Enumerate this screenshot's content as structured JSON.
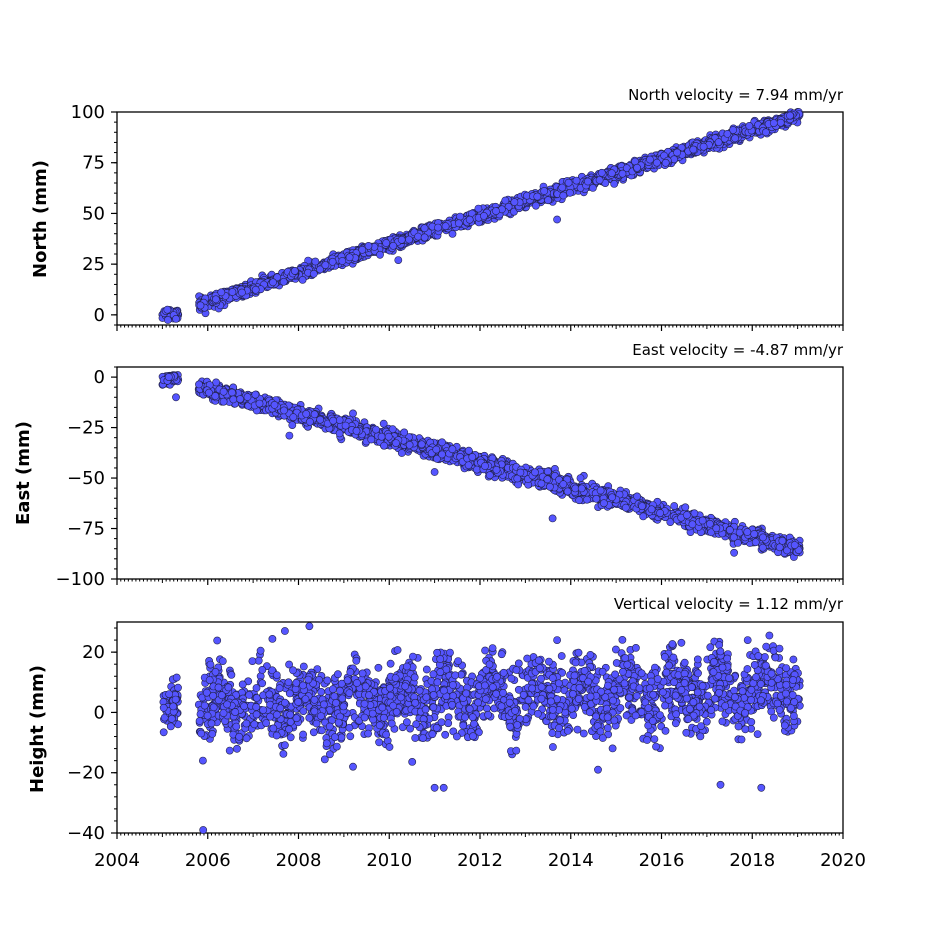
{
  "chart_data": [
    {
      "type": "scatter",
      "title": "North velocity = 7.94 mm/yr",
      "ylabel": "North (mm)",
      "ylim": [
        -5,
        100
      ],
      "xlim": [
        2004,
        2020
      ],
      "yticks": [
        0,
        25,
        50,
        75,
        100
      ],
      "ytick_labels": [
        "0",
        "25",
        "50",
        "75",
        "100"
      ],
      "series": [
        {
          "color": "#5555ff",
          "trend": {
            "start": [
              2005.8,
              5
            ],
            "end": [
              2019.0,
              98
            ]
          },
          "scatter_sd": 1.5,
          "segments": [
            {
              "x_range": [
                2005.0,
                2005.35
              ],
              "y_center": 0.5,
              "y_spread": 2.5
            },
            {
              "x_range": [
                2005.8,
                2019.05
              ]
            }
          ],
          "outliers": [
            [
              2013.7,
              47
            ],
            [
              2010.2,
              27
            ],
            [
              2018.3,
              90
            ],
            [
              2005.3,
              -2
            ]
          ]
        }
      ]
    },
    {
      "type": "scatter",
      "title": "East velocity = -4.87 mm/yr",
      "ylabel": "East (mm)",
      "ylim": [
        -100,
        5
      ],
      "xlim": [
        2004,
        2020
      ],
      "yticks": [
        0,
        -25,
        -50,
        -75,
        -100
      ],
      "ytick_labels": [
        "0",
        "−25",
        "−50",
        "−75",
        "−100"
      ],
      "series": [
        {
          "color": "#5555ff",
          "trend": {
            "start": [
              2005.8,
              -5
            ],
            "end": [
              2019.0,
              -85
            ]
          },
          "scatter_sd": 2.0,
          "segments": [
            {
              "x_range": [
                2005.0,
                2005.35
              ],
              "y_center": -1,
              "y_spread": 3
            },
            {
              "x_range": [
                2005.8,
                2019.05
              ]
            }
          ],
          "outliers": [
            [
              2007.8,
              -29
            ],
            [
              2013.6,
              -70
            ],
            [
              2017.6,
              -87
            ],
            [
              2011.0,
              -47
            ],
            [
              2005.3,
              -10
            ],
            [
              2009.2,
              -18
            ]
          ]
        }
      ]
    },
    {
      "type": "scatter",
      "title": "Vertical velocity = 1.12 mm/yr",
      "ylabel": "Height (mm)",
      "ylim": [
        -40,
        30
      ],
      "xlim": [
        2004,
        2020
      ],
      "yticks": [
        20,
        0,
        -20,
        -40
      ],
      "ytick_labels": [
        "20",
        "0",
        "−20",
        "−40"
      ],
      "xticks": [
        2004,
        2006,
        2008,
        2010,
        2012,
        2014,
        2016,
        2018,
        2020
      ],
      "xtick_labels": [
        "2004",
        "2006",
        "2008",
        "2010",
        "2012",
        "2014",
        "2016",
        "2018",
        "2020"
      ],
      "series": [
        {
          "color": "#5555ff",
          "trend": {
            "start": [
              2005.8,
              2
            ],
            "end": [
              2019.0,
              8
            ]
          },
          "scatter_sd": 6.0,
          "segments": [
            {
              "x_range": [
                2005.0,
                2005.35
              ],
              "y_center": 2,
              "y_spread": 7
            },
            {
              "x_range": [
                2005.8,
                2019.05
              ]
            }
          ],
          "outliers": [
            [
              2007.7,
              27
            ],
            [
              2005.9,
              -39
            ],
            [
              2011.0,
              -25
            ],
            [
              2011.2,
              -25
            ],
            [
              2018.2,
              -25
            ],
            [
              2013.7,
              24
            ],
            [
              2017.9,
              24
            ],
            [
              2017.3,
              -24
            ],
            [
              2009.2,
              -18
            ],
            [
              2014.6,
              -19
            ]
          ]
        }
      ]
    }
  ]
}
